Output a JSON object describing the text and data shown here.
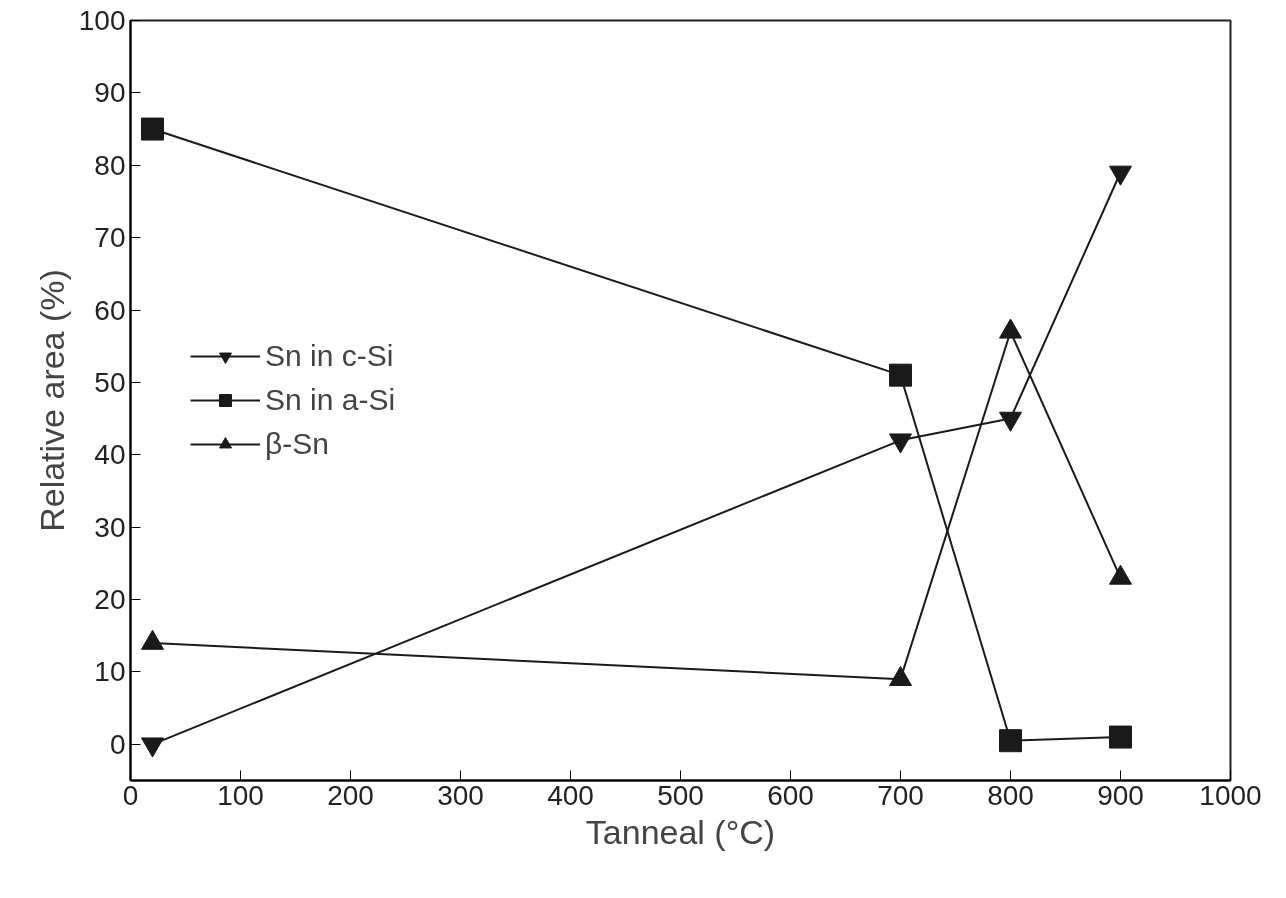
{
  "chart_data": {
    "type": "line",
    "xlabel": "Tanneal (°C)",
    "ylabel": "Relative area (%)",
    "xlim": [
      0,
      1000
    ],
    "ylim": [
      -5,
      100
    ],
    "xticks": [
      0,
      100,
      200,
      300,
      400,
      500,
      600,
      700,
      800,
      900,
      1000
    ],
    "yticks": [
      0,
      10,
      20,
      30,
      40,
      50,
      60,
      70,
      80,
      90,
      100
    ],
    "grid": false,
    "legend": "left",
    "line_style": "solid",
    "series": [
      {
        "name": "Sn in c-Si",
        "color": "#1a1a1a",
        "marker": "triangle",
        "x": [
          20,
          700,
          800,
          900
        ],
        "values": [
          0,
          42,
          45,
          79
        ]
      },
      {
        "name": "Sn in a-Si",
        "color": "#1a1a1a",
        "marker": "square",
        "x": [
          20,
          700,
          800,
          900
        ],
        "values": [
          85,
          51,
          0.5,
          1
        ]
      },
      {
        "name": "β-Sn",
        "color": "#1a1a1a",
        "marker": "triangle",
        "x": [
          20,
          700,
          800,
          900
        ],
        "values": [
          14,
          9,
          57,
          23
        ]
      }
    ]
  }
}
